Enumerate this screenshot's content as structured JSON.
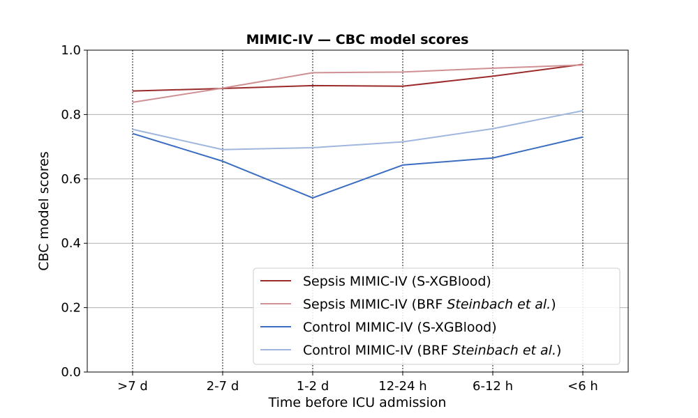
{
  "chart_data": {
    "type": "line",
    "title": "MIMIC-IV — CBC model scores",
    "xlabel": "Time before ICU admission",
    "ylabel": "CBC model scores",
    "categories": [
      ">7 d",
      "2-7 d",
      "1-2 d",
      "12-24 h",
      "6-12 h",
      "<6 h"
    ],
    "ylim": [
      0.0,
      1.0
    ],
    "yticks": [
      "0.0",
      "0.2",
      "0.4",
      "0.6",
      "0.8",
      "1.0"
    ],
    "grid": {
      "horizontal": true,
      "vertical_dotted_at_categories": true
    },
    "legend_position": "lower-right",
    "series": [
      {
        "name": "Sepsis MIMIC-IV  (S-XGBlood)",
        "name_plain": "Sepsis MIMIC-IV  (S-XGBlood)",
        "name_italic": "",
        "name_suffix": "",
        "color": "#9b2a2a",
        "values": [
          0.873,
          0.881,
          0.89,
          0.888,
          0.919,
          0.956
        ]
      },
      {
        "name": "Sepsis MIMIC-IV  (BRF Steinbach et al.)",
        "name_plain": "Sepsis MIMIC-IV  (BRF ",
        "name_italic": "Steinbach et al.",
        "name_suffix": ")",
        "color": "#d08f92",
        "values": [
          0.838,
          0.882,
          0.93,
          0.932,
          0.944,
          0.954
        ]
      },
      {
        "name": "Control MIMIC-IV  (S-XGBlood)",
        "name_plain": "Control MIMIC-IV  (S-XGBlood)",
        "name_italic": "",
        "name_suffix": "",
        "color": "#3a6cc2",
        "values": [
          0.741,
          0.655,
          0.541,
          0.643,
          0.665,
          0.73
        ]
      },
      {
        "name": "Control MIMIC-IV  (BRF Steinbach et al.)",
        "name_plain": "Control MIMIC-IV  (BRF ",
        "name_italic": "Steinbach et al.",
        "name_suffix": ")",
        "color": "#9fb6de",
        "values": [
          0.754,
          0.691,
          0.697,
          0.715,
          0.756,
          0.812
        ]
      }
    ]
  }
}
